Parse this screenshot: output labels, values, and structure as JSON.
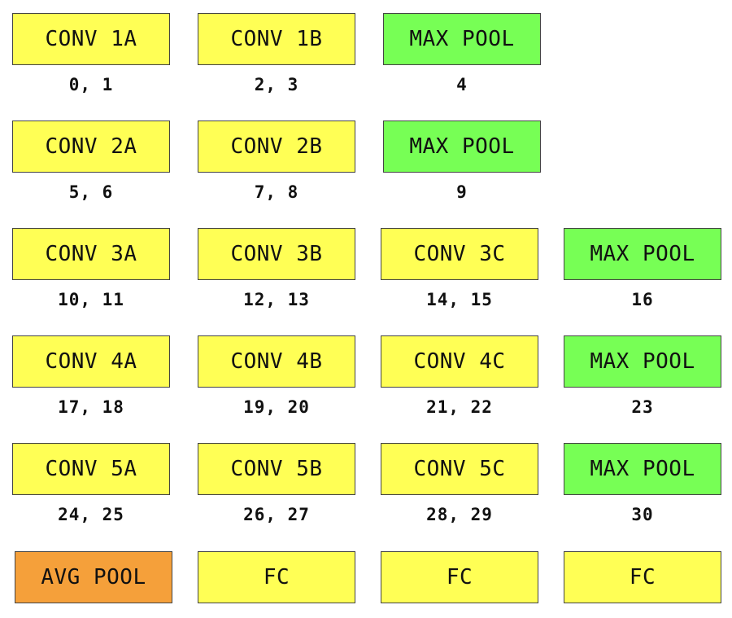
{
  "blocks": {
    "conv1a": {
      "label": "CONV 1A",
      "indices": "0, 1",
      "color": "#ffff55"
    },
    "conv1b": {
      "label": "CONV 1B",
      "indices": "2, 3",
      "color": "#ffff55"
    },
    "pool1": {
      "label": "MAX POOL",
      "indices": "4",
      "color": "#77ff55"
    },
    "conv2a": {
      "label": "CONV 2A",
      "indices": "5, 6",
      "color": "#ffff55"
    },
    "conv2b": {
      "label": "CONV 2B",
      "indices": "7, 8",
      "color": "#ffff55"
    },
    "pool2": {
      "label": "MAX POOL",
      "indices": "9",
      "color": "#77ff55"
    },
    "conv3a": {
      "label": "CONV 3A",
      "indices": "10, 11",
      "color": "#ffff55"
    },
    "conv3b": {
      "label": "CONV 3B",
      "indices": "12, 13",
      "color": "#ffff55"
    },
    "conv3c": {
      "label": "CONV 3C",
      "indices": "14, 15",
      "color": "#ffff55"
    },
    "pool3": {
      "label": "MAX POOL",
      "indices": "16",
      "color": "#77ff55"
    },
    "conv4a": {
      "label": "CONV 4A",
      "indices": "17, 18",
      "color": "#ffff55"
    },
    "conv4b": {
      "label": "CONV 4B",
      "indices": "19, 20",
      "color": "#ffff55"
    },
    "conv4c": {
      "label": "CONV 4C",
      "indices": "21, 22",
      "color": "#ffff55"
    },
    "pool4": {
      "label": "MAX POOL",
      "indices": "23",
      "color": "#77ff55"
    },
    "conv5a": {
      "label": "CONV 5A",
      "indices": "24, 25",
      "color": "#ffff55"
    },
    "conv5b": {
      "label": "CONV 5B",
      "indices": "26, 27",
      "color": "#ffff55"
    },
    "conv5c": {
      "label": "CONV 5C",
      "indices": "28, 29",
      "color": "#ffff55"
    },
    "pool5": {
      "label": "MAX POOL",
      "indices": "30",
      "color": "#77ff55"
    },
    "avgpool": {
      "label": "AVG POOL",
      "color": "#f5a03a"
    },
    "fc1": {
      "label": "FC",
      "color": "#ffff55"
    },
    "fc2": {
      "label": "FC",
      "color": "#ffff55"
    },
    "fc3": {
      "label": "FC",
      "color": "#ffff55"
    }
  }
}
